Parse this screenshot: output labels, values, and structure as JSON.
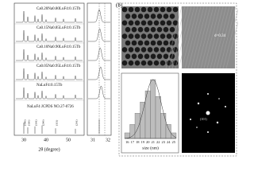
{
  "panel_a": {
    "sample_labels": [
      "Ca0.20Na0.80LuF4:0.15Tb",
      "Ca0.15Na0.85LuF4:0.15Tb",
      "Ca0.10Na0.90LuF4:0.15Tb",
      "Ca0.05Na0.95LuF4:0.15Tb",
      "NaLuF4:0.15Tb"
    ],
    "reference_label": "NaLuF4 JCPDS NO.27-0726",
    "miller_indices": [
      "(100)",
      "(110)",
      "(101)",
      "(200)",
      "(111)",
      "(201)"
    ],
    "x_label": "2θ (degree)",
    "x_ticks": [
      "30",
      "40",
      "50"
    ],
    "inset_x_ticks": [
      "31",
      "32"
    ]
  },
  "panel_b": {
    "label": "(b)",
    "hrtem_label": "d=0.34",
    "fft_label": "(101)",
    "histogram": {
      "categories": [
        "16",
        "17",
        "18",
        "19",
        "20",
        "21",
        "22",
        "23",
        "24",
        "25"
      ],
      "values": [
        2,
        5,
        9,
        13,
        17,
        21,
        15,
        9,
        5,
        2
      ],
      "x_label": "size (nm)"
    }
  }
}
